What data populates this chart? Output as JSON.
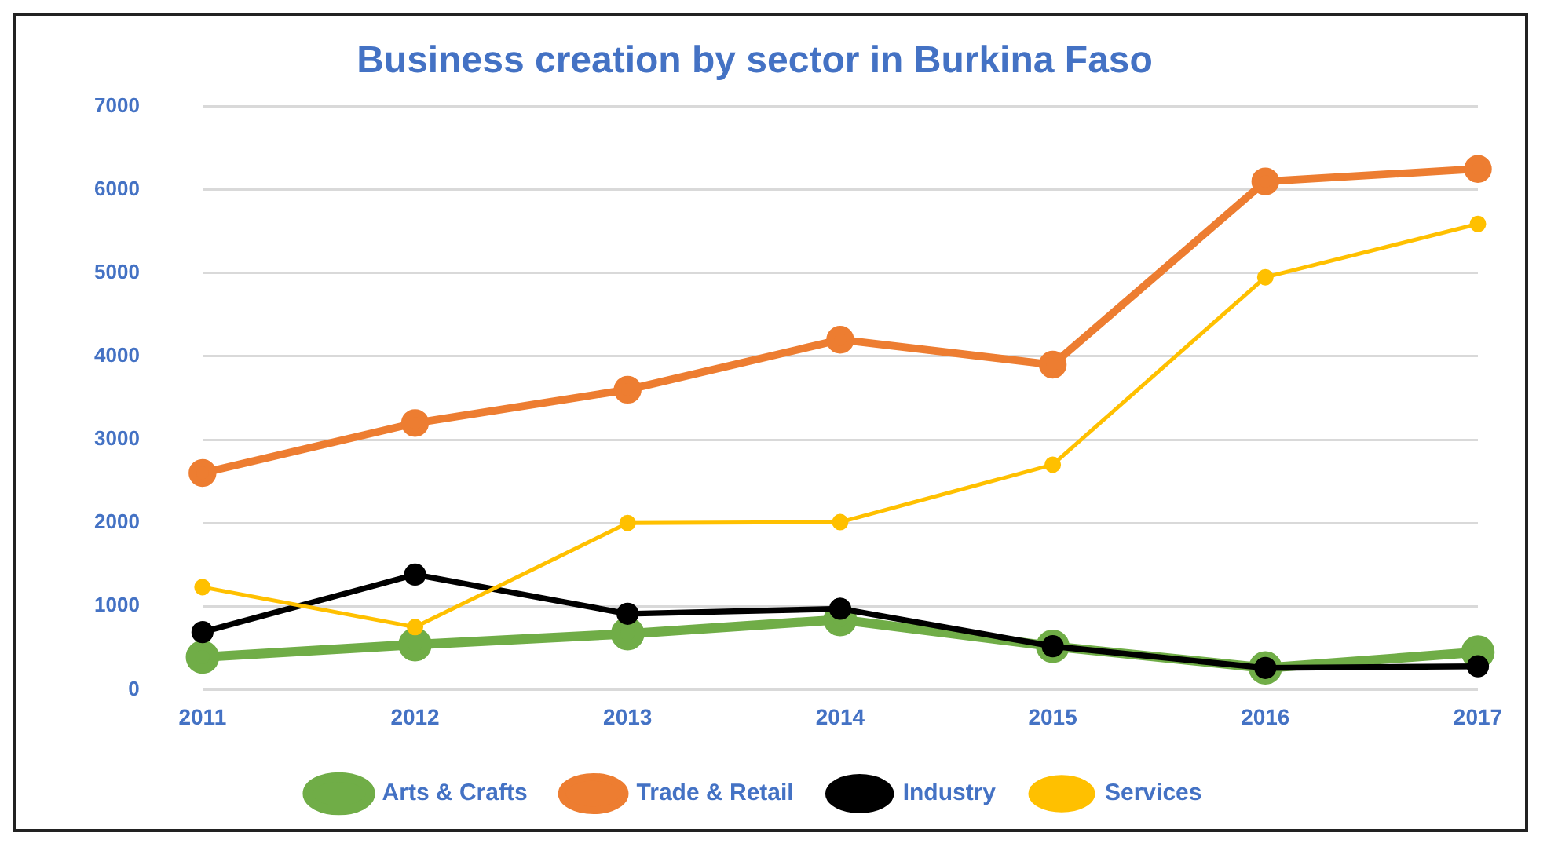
{
  "chart_data": {
    "type": "line",
    "title": "Business creation by sector in Burkina Faso",
    "categories": [
      "2011",
      "2012",
      "2013",
      "2014",
      "2015",
      "2016",
      "2017"
    ],
    "series": [
      {
        "name": "Arts & Crafts",
        "color": "#70ad47",
        "values": [
          390,
          540,
          670,
          840,
          520,
          260,
          450
        ]
      },
      {
        "name": "Trade & Retail",
        "color": "#ed7d31",
        "values": [
          2600,
          3200,
          3600,
          4200,
          3900,
          6100,
          6250
        ]
      },
      {
        "name": "Industry",
        "color": "#000000",
        "values": [
          690,
          1380,
          910,
          970,
          520,
          260,
          280
        ]
      },
      {
        "name": "Services",
        "color": "#ffc000",
        "values": [
          1230,
          750,
          2000,
          2010,
          2700,
          4950,
          5590
        ]
      }
    ],
    "ylim": [
      0,
      7000
    ],
    "yticks": [
      0,
      1000,
      2000,
      3000,
      4000,
      5000,
      6000,
      7000
    ],
    "grid": "y",
    "legend": "bottom",
    "marker": "circle",
    "line_style": "solid"
  }
}
